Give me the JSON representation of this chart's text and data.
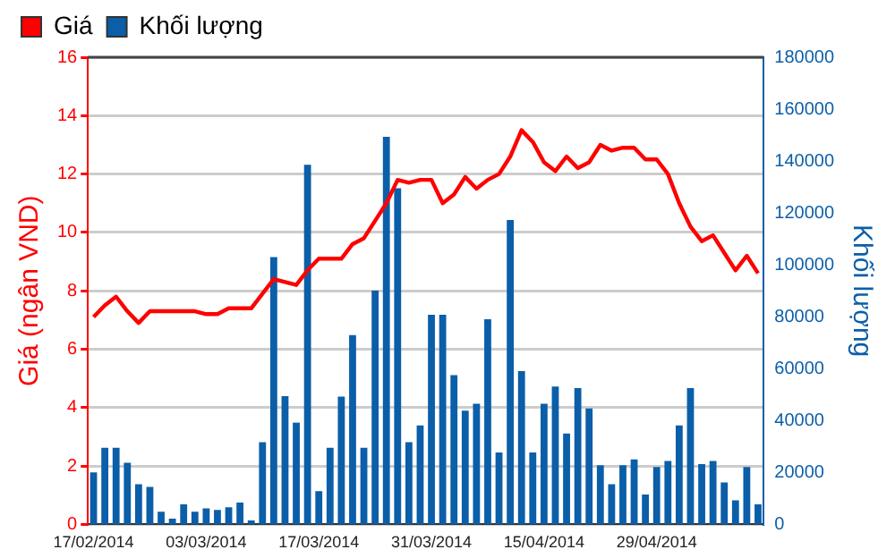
{
  "chart_data": {
    "type": "bar",
    "ylabel": "Giá (ngân VND)",
    "y2label": "Khối lượng",
    "categories": [
      "17/02/2014",
      null,
      null,
      null,
      null,
      null,
      null,
      null,
      null,
      null,
      "03/03/2014",
      null,
      null,
      null,
      null,
      null,
      null,
      null,
      null,
      null,
      "17/03/2014",
      null,
      null,
      null,
      null,
      null,
      null,
      null,
      null,
      null,
      "31/03/2014",
      null,
      null,
      null,
      null,
      null,
      null,
      null,
      null,
      null,
      "15/04/2014",
      null,
      null,
      null,
      null,
      null,
      null,
      null,
      null,
      null,
      "29/04/2014",
      null,
      null,
      null,
      null,
      null,
      null,
      null,
      null,
      null
    ],
    "series": [
      {
        "name": "Giá",
        "type": "line",
        "axis": "y",
        "color": "#ff0000",
        "values": [
          7.1,
          7.5,
          7.8,
          7.3,
          6.9,
          7.3,
          7.3,
          7.3,
          7.3,
          7.3,
          7.2,
          7.2,
          7.4,
          7.4,
          7.4,
          7.9,
          8.4,
          8.3,
          8.2,
          8.7,
          9.1,
          9.1,
          9.1,
          9.6,
          9.8,
          10.4,
          11.0,
          11.8,
          11.7,
          11.8,
          11.8,
          11.0,
          11.3,
          11.9,
          11.5,
          11.8,
          12.0,
          12.6,
          13.5,
          13.1,
          12.4,
          12.1,
          12.6,
          12.2,
          12.4,
          13.0,
          12.8,
          12.9,
          12.9,
          12.5,
          12.5,
          12.0,
          11.0,
          10.2,
          9.7,
          9.9,
          9.3,
          8.7,
          9.2,
          8.6
        ]
      },
      {
        "name": "Khối lượng",
        "axis": "y2",
        "color": "#0b5ea8",
        "values": [
          20000,
          29500,
          29500,
          23700,
          15500,
          14400,
          4900,
          2200,
          7700,
          4900,
          6200,
          5600,
          6600,
          8400,
          1500,
          31700,
          103000,
          49400,
          39200,
          138600,
          12800,
          29500,
          49200,
          72900,
          29500,
          90100,
          149300,
          129500,
          31700,
          38100,
          80800,
          80800,
          57500,
          43800,
          46500,
          79000,
          27700,
          117300,
          59100,
          27700,
          46500,
          53100,
          35000,
          52500,
          44700,
          22800,
          15500,
          22800,
          25000,
          11500,
          22100,
          24400,
          38100,
          52500,
          23200,
          24400,
          16200,
          9300,
          22100,
          7700
        ]
      }
    ],
    "ylim": [
      0,
      16
    ],
    "yticks": [
      0,
      2,
      4,
      6,
      8,
      10,
      12,
      14,
      16
    ],
    "y2lim": [
      0,
      180000
    ],
    "y2ticks": [
      0,
      20000,
      40000,
      60000,
      80000,
      100000,
      120000,
      140000,
      160000,
      180000
    ],
    "grid": "y",
    "legend": "top left",
    "marker": "none",
    "line_style": "solid"
  }
}
